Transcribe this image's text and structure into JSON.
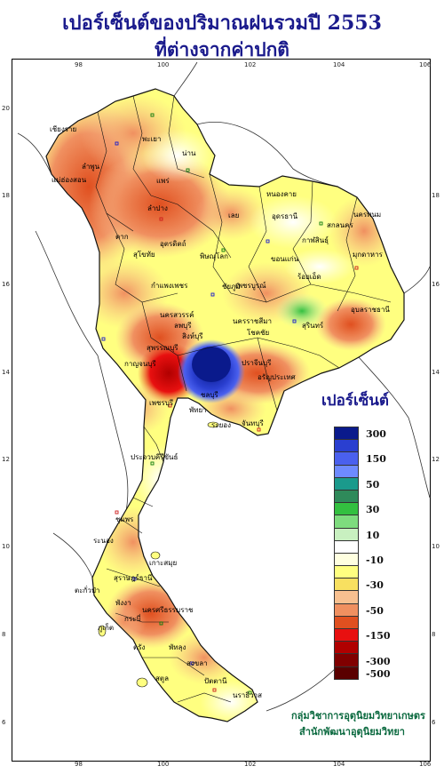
{
  "title": {
    "line1": "เปอร์เซ็นต์ของปริมาณฝนรวมปี 2553",
    "line2": "ที่ต่างจากค่าปกติ"
  },
  "axes": {
    "longitude_ticks": [
      "98",
      "100",
      "102",
      "104",
      "106"
    ],
    "latitude_ticks": [
      "20",
      "18",
      "16",
      "14",
      "12",
      "10",
      "8",
      "6"
    ]
  },
  "legend": {
    "title": "เปอร์เซ็นต์",
    "items": [
      {
        "label": "300",
        "color": "#0a1a8c"
      },
      {
        "label": "",
        "color": "#2a3fd0"
      },
      {
        "label": "150",
        "color": "#4a60ee"
      },
      {
        "label": "",
        "color": "#6e8aff"
      },
      {
        "label": "50",
        "color": "#1a9a8c"
      },
      {
        "label": "",
        "color": "#2f8a5a"
      },
      {
        "label": "30",
        "color": "#33c040"
      },
      {
        "label": "",
        "color": "#7edc7e"
      },
      {
        "label": "10",
        "color": "#c8f0c0"
      },
      {
        "label": "",
        "color": "#ffffff"
      },
      {
        "label": "-10",
        "color": "#ffffe0"
      },
      {
        "label": "",
        "color": "#ffff80"
      },
      {
        "label": "-30",
        "color": "#f8e060"
      },
      {
        "label": "",
        "color": "#f8c090"
      },
      {
        "label": "-50",
        "color": "#f09060"
      },
      {
        "label": "",
        "color": "#e05020"
      },
      {
        "label": "-150",
        "color": "#e81010"
      },
      {
        "label": "",
        "color": "#b00000"
      },
      {
        "label": "-300",
        "color": "#800000"
      },
      {
        "label": "-500",
        "color": "#5a0000"
      }
    ]
  },
  "credit": {
    "line1": "กลุ่มวิชาการอุตุนิยมวิทยาเกษตร",
    "line2": "สำนักพัฒนาอุตุนิยมวิทยา"
  },
  "places": [
    {
      "name": "เชียงราย"
    },
    {
      "name": "พะเยา"
    },
    {
      "name": "ลำพูน"
    },
    {
      "name": "น่าน"
    },
    {
      "name": "แพร่"
    },
    {
      "name": "แม่ฮ่องสอน"
    },
    {
      "name": "ลำปาง"
    },
    {
      "name": "อุตรดิตถ์"
    },
    {
      "name": "ตาก"
    },
    {
      "name": "สุโขทัย"
    },
    {
      "name": "พิษณุโลก"
    },
    {
      "name": "กำแพงเพชร"
    },
    {
      "name": "เพชรบูรณ์"
    },
    {
      "name": "เลย"
    },
    {
      "name": "หนองคาย"
    },
    {
      "name": "อุดรธานี"
    },
    {
      "name": "สกลนคร"
    },
    {
      "name": "นครพนม"
    },
    {
      "name": "กาฬสินธุ์"
    },
    {
      "name": "มุกดาหาร"
    },
    {
      "name": "ขอนแก่น"
    },
    {
      "name": "ชัยภูมิ"
    },
    {
      "name": "นครสวรรค์"
    },
    {
      "name": "ร้อยเอ็ด"
    },
    {
      "name": "อุบลราชธานี"
    },
    {
      "name": "สุรินทร์"
    },
    {
      "name": "นครราชสีมา"
    },
    {
      "name": "โชคชัย"
    },
    {
      "name": "ลพบุรี"
    },
    {
      "name": "สิงห์บุรี"
    },
    {
      "name": "สุพรรณบุรี"
    },
    {
      "name": "กาญจนบุรี"
    },
    {
      "name": "ปราจีนบุรี"
    },
    {
      "name": "อรัญประเทศ"
    },
    {
      "name": "ชลบุรี"
    },
    {
      "name": "พัทยา"
    },
    {
      "name": "ระยอง"
    },
    {
      "name": "จันทบุรี"
    },
    {
      "name": "เพชรบุรี"
    },
    {
      "name": "ประจวบคีรีขันธ์"
    },
    {
      "name": "ชุมพร"
    },
    {
      "name": "ระนอง"
    },
    {
      "name": "เกาะสมุย"
    },
    {
      "name": "สุราษฎร์ธานี"
    },
    {
      "name": "ตะกั่วป่า"
    },
    {
      "name": "พังงา"
    },
    {
      "name": "นครศรีธรรมราช"
    },
    {
      "name": "ภูเก็ต"
    },
    {
      "name": "กระบี่"
    },
    {
      "name": "ตรัง"
    },
    {
      "name": "พัทลุง"
    },
    {
      "name": "สงขลา"
    },
    {
      "name": "สตูล"
    },
    {
      "name": "ปัตตานี"
    },
    {
      "name": "นราธิวาส"
    }
  ]
}
